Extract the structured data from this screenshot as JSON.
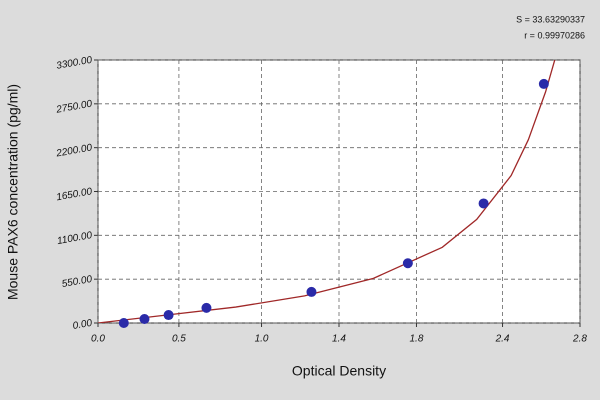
{
  "chart_data": {
    "type": "scatter",
    "stats": [
      "S = 33.63290337",
      "r = 0.99970286"
    ],
    "xlabel": "Optical Density",
    "ylabel": "Mouse PAX6 concentration (pg/ml)",
    "x": [
      0.15,
      0.27,
      0.41,
      0.63,
      1.24,
      1.8,
      2.24,
      2.59
    ],
    "values": [
      0,
      50,
      100,
      190,
      390,
      750,
      1500,
      3000
    ],
    "color": "#2a2aa8",
    "fit_curve": {
      "color": "#a02828",
      "x": [
        0,
        0.4,
        0.8,
        1.2,
        1.6,
        2.0,
        2.2,
        2.4,
        2.5,
        2.6,
        2.66
      ],
      "y": [
        0,
        100,
        200,
        340,
        560,
        950,
        1300,
        1850,
        2300,
        2900,
        3350
      ]
    },
    "xlim": [
      0,
      2.8
    ],
    "ylim": [
      0,
      3300
    ],
    "xticks": [
      {
        "value": 0,
        "label": "0.0"
      },
      {
        "value": 0.47,
        "label": "0.5"
      },
      {
        "value": 0.95,
        "label": "1.0"
      },
      1.4,
      {
        "value": 1.85,
        "label": "1.8"
      },
      {
        "value": 2.35,
        "label": "2.4"
      },
      {
        "value": 2.8,
        "label": "2.8"
      }
    ],
    "yticks": [
      {
        "value": 0,
        "label": "0.00"
      },
      {
        "value": 550,
        "label": "550.00"
      },
      {
        "value": 1100,
        "label": "1100.00"
      },
      {
        "value": 1650,
        "label": "1650.00"
      },
      {
        "value": 2200,
        "label": "2200.00"
      },
      {
        "value": 2750,
        "label": "2750.00"
      },
      {
        "value": 3300,
        "label": "3300.00"
      }
    ],
    "grid": true
  }
}
